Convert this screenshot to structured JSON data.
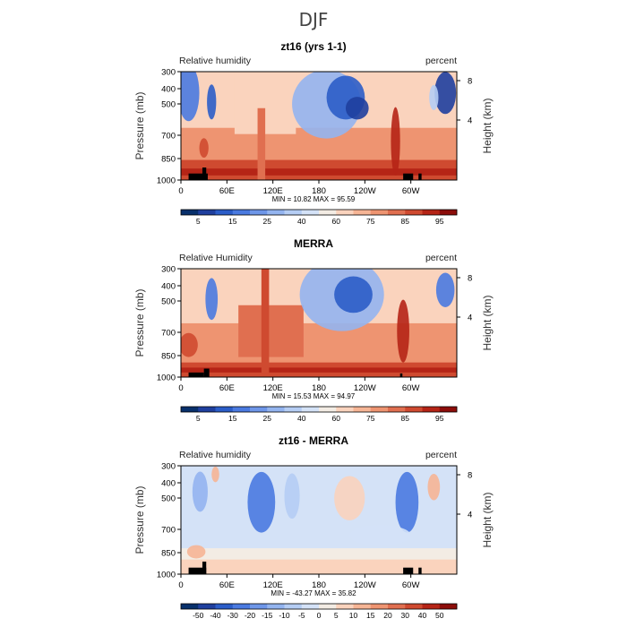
{
  "page": {
    "title": "DJF"
  },
  "chart_data": [
    {
      "type": "heatmap",
      "title": "zt16 (yrs 1-1)",
      "left_label": "Relative humidity",
      "right_label": "percent",
      "ylabel": "Pressure (mb)",
      "ylabel_right": "Height (km)",
      "stats": "MIN =   10.82   MAX =   95.59",
      "x_ticks": [
        "0",
        "60E",
        "120E",
        "180",
        "120W",
        "60W"
      ],
      "x_range": [
        0,
        360
      ],
      "y_ticks": [
        "300",
        "400",
        "500",
        "700",
        "850",
        "1000"
      ],
      "y_range": [
        1000,
        300
      ],
      "height_ticks": [
        "8",
        "4"
      ],
      "colorbar_labels": [
        "5",
        "15",
        "25",
        "40",
        "60",
        "75",
        "85",
        "95"
      ],
      "colorbar_colors": [
        "#08306b",
        "#1f3f9e",
        "#2b5dc8",
        "#4a7ae0",
        "#6e96e8",
        "#93b4ef",
        "#b5cdf4",
        "#d4e2f7",
        "#f3ece4",
        "#fad3bd",
        "#f6b595",
        "#ee9471",
        "#e06f50",
        "#cf4a30",
        "#b52416",
        "#8c0d0a"
      ],
      "zlim": [
        0,
        100
      ],
      "value_bands": [
        {
          "x0": 0,
          "x1": 360,
          "p_top": 300,
          "p_bot": 1000,
          "value": 58
        },
        {
          "x0": 0,
          "x1": 360,
          "p_top": 560,
          "p_bot": 1000,
          "value": 72
        },
        {
          "x0": 0,
          "x1": 360,
          "p_top": 800,
          "p_bot": 1000,
          "value": 82
        },
        {
          "x0": 0,
          "x1": 360,
          "p_top": 880,
          "p_bot": 950,
          "value": 92
        },
        {
          "x0": 70,
          "x1": 150,
          "p_top": 300,
          "p_bot": 600,
          "value": 62
        },
        {
          "x0": 100,
          "x1": 110,
          "p_top": 450,
          "p_bot": 1000,
          "value": 78
        }
      ],
      "value_blobs": [
        {
          "lon": 10,
          "p": 380,
          "rx": 14,
          "rp": 140,
          "value": 22
        },
        {
          "lon": 40,
          "p": 420,
          "rx": 6,
          "rp": 90,
          "value": 15
        },
        {
          "lon": 190,
          "p": 430,
          "rx": 45,
          "rp": 200,
          "value": 35
        },
        {
          "lon": 215,
          "p": 400,
          "rx": 25,
          "rp": 110,
          "value": 15
        },
        {
          "lon": 230,
          "p": 450,
          "rx": 15,
          "rp": 60,
          "value": 8
        },
        {
          "lon": 345,
          "p": 380,
          "rx": 14,
          "rp": 100,
          "value": 12
        },
        {
          "lon": 330,
          "p": 400,
          "rx": 6,
          "rp": 60,
          "value": 40
        },
        {
          "lon": 280,
          "p": 650,
          "rx": 6,
          "rp": 300,
          "value": 88
        },
        {
          "lon": 30,
          "p": 700,
          "rx": 6,
          "rp": 80,
          "value": 82
        }
      ],
      "orography": [
        {
          "x0": 10,
          "x1": 35,
          "p_top": 930
        },
        {
          "x0": 28,
          "x1": 33,
          "p_top": 870
        },
        {
          "x0": 290,
          "x1": 303,
          "p_top": 930
        },
        {
          "x0": 310,
          "x1": 314,
          "p_top": 930
        }
      ]
    },
    {
      "type": "heatmap",
      "title": "MERRA",
      "left_label": "Relative Humidity",
      "right_label": "percent",
      "ylabel": "Pressure (mb)",
      "ylabel_right": "Height (km)",
      "stats": "MIN =   15.53   MAX =   94.97",
      "x_ticks": [
        "0",
        "60E",
        "120E",
        "180",
        "120W",
        "60W"
      ],
      "x_range": [
        0,
        360
      ],
      "y_ticks": [
        "300",
        "400",
        "500",
        "700",
        "850",
        "1000"
      ],
      "y_range": [
        1000,
        300
      ],
      "height_ticks": [
        "8",
        "4"
      ],
      "colorbar_labels": [
        "5",
        "15",
        "25",
        "40",
        "60",
        "75",
        "85",
        "95"
      ],
      "colorbar_colors": [
        "#08306b",
        "#1f3f9e",
        "#2b5dc8",
        "#4a7ae0",
        "#6e96e8",
        "#93b4ef",
        "#b5cdf4",
        "#d4e2f7",
        "#f3ece4",
        "#fad3bd",
        "#f6b595",
        "#ee9471",
        "#e06f50",
        "#cf4a30",
        "#b52416",
        "#8c0d0a"
      ],
      "zlim": [
        0,
        100
      ],
      "value_bands": [
        {
          "x0": 0,
          "x1": 360,
          "p_top": 300,
          "p_bot": 1000,
          "value": 60
        },
        {
          "x0": 0,
          "x1": 360,
          "p_top": 550,
          "p_bot": 1000,
          "value": 72
        },
        {
          "x0": 0,
          "x1": 360,
          "p_top": 850,
          "p_bot": 1000,
          "value": 84
        },
        {
          "x0": 0,
          "x1": 360,
          "p_top": 900,
          "p_bot": 950,
          "value": 92
        },
        {
          "x0": 75,
          "x1": 160,
          "p_top": 450,
          "p_bot": 800,
          "value": 78
        },
        {
          "x0": 105,
          "x1": 115,
          "p_top": 300,
          "p_bot": 1000,
          "value": 85
        }
      ],
      "value_blobs": [
        {
          "lon": 40,
          "p": 420,
          "rx": 8,
          "rp": 110,
          "value": 20
        },
        {
          "lon": 10,
          "p": 700,
          "rx": 12,
          "rp": 100,
          "value": 82
        },
        {
          "lon": 210,
          "p": 400,
          "rx": 55,
          "rp": 200,
          "value": 35
        },
        {
          "lon": 225,
          "p": 400,
          "rx": 25,
          "rp": 90,
          "value": 15
        },
        {
          "lon": 345,
          "p": 380,
          "rx": 12,
          "rp": 80,
          "value": 20
        },
        {
          "lon": 290,
          "p": 600,
          "rx": 8,
          "rp": 250,
          "value": 88
        }
      ],
      "orography": [
        {
          "x0": 10,
          "x1": 30,
          "p_top": 950
        },
        {
          "x0": 30,
          "x1": 37,
          "p_top": 910
        },
        {
          "x0": 286,
          "x1": 289,
          "p_top": 960
        }
      ]
    },
    {
      "type": "heatmap",
      "title": "zt16 - MERRA",
      "left_label": "Relative humidity",
      "right_label": "percent",
      "ylabel": "Pressure (mb)",
      "ylabel_right": "Height (km)",
      "stats": "MIN =  -43.27   MAX =   35.82",
      "x_ticks": [
        "0",
        "60E",
        "120E",
        "180",
        "120W",
        "60W"
      ],
      "x_range": [
        0,
        360
      ],
      "y_ticks": [
        "300",
        "400",
        "500",
        "700",
        "850",
        "1000"
      ],
      "y_range": [
        1000,
        300
      ],
      "height_ticks": [
        "8",
        "4"
      ],
      "colorbar_labels": [
        "-50",
        "-40",
        "-30",
        "-20",
        "-15",
        "-10",
        "-5",
        "0",
        "5",
        "10",
        "15",
        "20",
        "30",
        "40",
        "50"
      ],
      "colorbar_colors": [
        "#08306b",
        "#1f3f9e",
        "#2b5dc8",
        "#4a7ae0",
        "#6e96e8",
        "#93b4ef",
        "#b5cdf4",
        "#d4e2f7",
        "#f3ece4",
        "#fad3bd",
        "#f6b595",
        "#ee9471",
        "#e06f50",
        "#cf4a30",
        "#b52416",
        "#8c0d0a"
      ],
      "zlim": [
        -60,
        60
      ],
      "value_bands": [
        {
          "x0": 0,
          "x1": 360,
          "p_top": 300,
          "p_bot": 1000,
          "value": -3
        },
        {
          "x0": 0,
          "x1": 360,
          "p_top": 750,
          "p_bot": 1000,
          "value": 3
        },
        {
          "x0": 0,
          "x1": 360,
          "p_top": 850,
          "p_bot": 1000,
          "value": 8
        }
      ],
      "value_blobs": [
        {
          "lon": 105,
          "p": 450,
          "rx": 18,
          "rp": 180,
          "value": -35
        },
        {
          "lon": 295,
          "p": 450,
          "rx": 15,
          "rp": 180,
          "value": -35
        },
        {
          "lon": 145,
          "p": 420,
          "rx": 10,
          "rp": 120,
          "value": -15
        },
        {
          "lon": 25,
          "p": 400,
          "rx": 10,
          "rp": 100,
          "value": -18
        },
        {
          "lon": 220,
          "p": 430,
          "rx": 20,
          "rp": 120,
          "value": 10
        },
        {
          "lon": 330,
          "p": 380,
          "rx": 8,
          "rp": 60,
          "value": 20
        },
        {
          "lon": 45,
          "p": 330,
          "rx": 5,
          "rp": 30,
          "value": 15
        },
        {
          "lon": 20,
          "p": 780,
          "rx": 12,
          "rp": 60,
          "value": 20
        },
        {
          "lon": 260,
          "p": 650,
          "rx": 40,
          "rp": 80,
          "value": -5
        }
      ],
      "orography": [
        {
          "x0": 10,
          "x1": 33,
          "p_top": 930
        },
        {
          "x0": 28,
          "x1": 33,
          "p_top": 870
        },
        {
          "x0": 290,
          "x1": 303,
          "p_top": 930
        },
        {
          "x0": 310,
          "x1": 314,
          "p_top": 930
        }
      ]
    }
  ]
}
